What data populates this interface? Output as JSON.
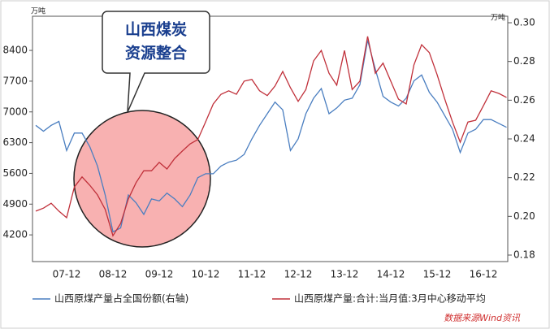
{
  "chart_data": {
    "type": "line",
    "y_label": "万吨",
    "y2_label": "万吨",
    "annotation": [
      "山西煤炭",
      "资源整合"
    ],
    "source": "数据来源Wind资讯",
    "categories": [
      null,
      null,
      null,
      null,
      "07-12",
      null,
      null,
      null,
      null,
      null,
      "08-12",
      null,
      null,
      null,
      null,
      null,
      "09-12",
      null,
      null,
      null,
      null,
      null,
      "10-12",
      null,
      null,
      null,
      null,
      null,
      "11-12",
      null,
      null,
      null,
      null,
      null,
      "12-12",
      null,
      null,
      null,
      null,
      null,
      "13-12",
      null,
      null,
      null,
      null,
      null,
      "14-12",
      null,
      null,
      null,
      null,
      null,
      "15-12",
      null,
      null,
      null,
      null,
      null,
      "16-12",
      null,
      null,
      null
    ],
    "series": [
      {
        "name": "山西原煤产量占全国份额(右轴)",
        "color": "#4a7ec0",
        "axis": "y2",
        "values": [
          0.247,
          0.244,
          0.247,
          0.249,
          0.234,
          0.243,
          0.243,
          0.236,
          0.226,
          0.211,
          0.192,
          0.194,
          0.211,
          0.207,
          0.201,
          0.209,
          0.208,
          0.212,
          0.209,
          0.205,
          0.211,
          0.22,
          0.222,
          0.222,
          0.226,
          0.228,
          0.229,
          0.232,
          0.24,
          0.247,
          0.253,
          0.259,
          0.255,
          0.234,
          0.24,
          0.253,
          0.261,
          0.266,
          0.253,
          0.256,
          0.26,
          0.261,
          0.268,
          0.291,
          0.276,
          0.262,
          0.259,
          0.257,
          0.261,
          0.27,
          0.273,
          0.264,
          0.259,
          0.252,
          0.245,
          0.233,
          0.243,
          0.245,
          0.25,
          0.25,
          0.248,
          0.246
        ]
      },
      {
        "name": "山西原煤产量:合计:当月值:3月中心移动平均",
        "color": "#c0303a",
        "values": [
          4740,
          4810,
          4920,
          4740,
          4590,
          5290,
          5520,
          5330,
          5110,
          4780,
          4180,
          4460,
          5020,
          5390,
          5660,
          5660,
          5850,
          5700,
          5940,
          6110,
          6270,
          6370,
          6770,
          7180,
          7400,
          7480,
          7400,
          7700,
          7740,
          7480,
          7370,
          7590,
          7920,
          7550,
          7240,
          7510,
          8160,
          8400,
          7880,
          7610,
          8400,
          7510,
          7700,
          8720,
          7880,
          8110,
          7700,
          7290,
          7180,
          8070,
          8530,
          8350,
          7850,
          7290,
          6770,
          6310,
          6770,
          6810,
          7140,
          7480,
          7420,
          7330
        ]
      }
    ],
    "ylim": [
      3740,
      9030
    ],
    "yticks": [
      4200,
      4900,
      5600,
      6300,
      7000,
      7700,
      8400
    ],
    "y2lim": [
      0.18,
      0.3
    ],
    "y2ticks": [
      0.18,
      {
        "value": 0.2,
        "label": "0.20"
      },
      0.22,
      0.24,
      0.26,
      0.28,
      {
        "value": 0.3,
        "label": "0.30"
      }
    ],
    "legend": "bottom"
  }
}
